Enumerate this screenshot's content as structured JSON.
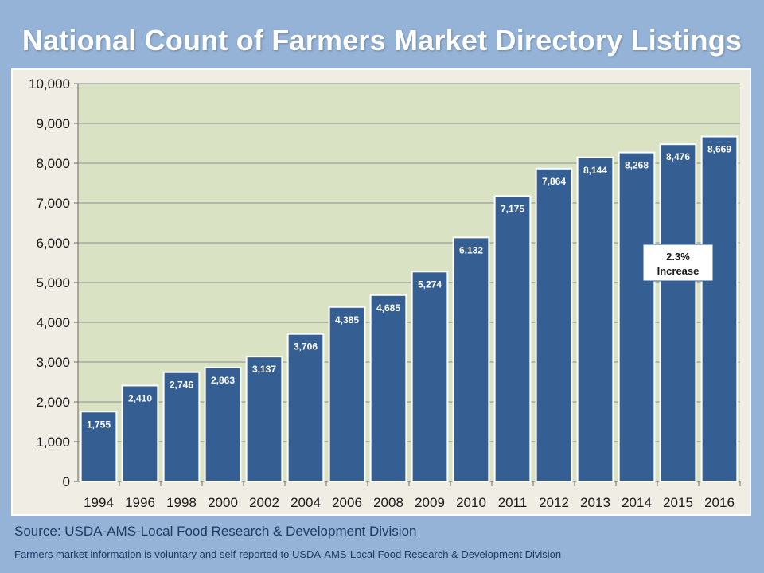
{
  "colors": {
    "background": "#94b3d6",
    "plot_area": "#d9e3c4",
    "bar": "#355e92",
    "frame": "#f0ede4"
  },
  "slide": {
    "title": "National Count of Farmers Market Directory Listings",
    "source": "Source:  USDA-AMS-Local Food Research & Development Division",
    "note": "Farmers market information is voluntary and self-reported to USDA-AMS-Local Food Research & Development Division"
  },
  "chart_data": {
    "type": "bar",
    "title": "",
    "xlabel": "",
    "ylabel": "",
    "ylim": [
      0,
      10000
    ],
    "yticks": [
      0,
      1000,
      2000,
      3000,
      4000,
      5000,
      6000,
      7000,
      8000,
      9000,
      10000
    ],
    "grid": true,
    "categories": [
      "1994",
      "1996",
      "1998",
      "2000",
      "2002",
      "2004",
      "2006",
      "2008",
      "2009",
      "2010",
      "2011",
      "2012",
      "2013",
      "2014",
      "2015",
      "2016"
    ],
    "values": [
      1755,
      2410,
      2746,
      2863,
      3137,
      3706,
      4385,
      4685,
      5274,
      6132,
      7175,
      7864,
      8144,
      8268,
      8476,
      8669
    ],
    "annotations": [
      {
        "text_line1": "2.3%",
        "text_line2": "Increase",
        "anchor_category": "2016",
        "anchor_value": 5500
      }
    ]
  }
}
